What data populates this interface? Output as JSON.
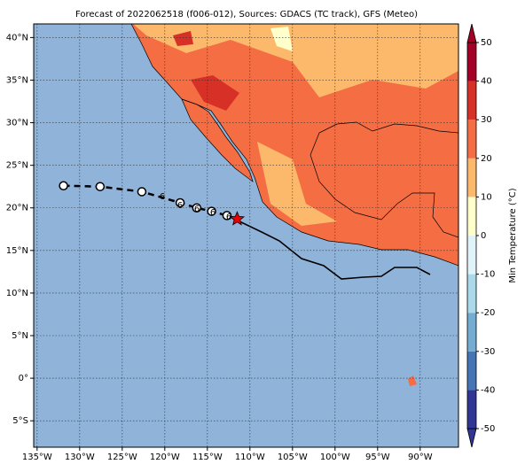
{
  "chart_data": {
    "type": "map",
    "title": "Forecast of 2022062518 (f006-012), Sources: GDACS (TC track), GFS (Meteo)",
    "xlim": [
      -135.4,
      -85.5
    ],
    "ylim": [
      -8.1,
      41.6
    ],
    "xticks": [
      {
        "value": -135,
        "label": "135°W"
      },
      {
        "value": -130,
        "label": "130°W"
      },
      {
        "value": -125,
        "label": "125°W"
      },
      {
        "value": -120,
        "label": "120°W"
      },
      {
        "value": -115,
        "label": "115°W"
      },
      {
        "value": -110,
        "label": "110°W"
      },
      {
        "value": -105,
        "label": "105°W"
      },
      {
        "value": -100,
        "label": "100°W"
      },
      {
        "value": -95,
        "label": "95°W"
      },
      {
        "value": -90,
        "label": "90°W"
      }
    ],
    "yticks": [
      {
        "value": -5,
        "label": "5°S"
      },
      {
        "value": 0,
        "label": "0°"
      },
      {
        "value": 5,
        "label": "5°N"
      },
      {
        "value": 10,
        "label": "10°N"
      },
      {
        "value": 15,
        "label": "15°N"
      },
      {
        "value": 20,
        "label": "20°N"
      },
      {
        "value": 25,
        "label": "25°N"
      },
      {
        "value": 30,
        "label": "30°N"
      },
      {
        "value": 35,
        "label": "35°N"
      },
      {
        "value": 40,
        "label": "40°N"
      }
    ],
    "grid": true,
    "track": {
      "lon": [
        -131.9,
        -127.6,
        -122.7,
        -118.2,
        -116.25,
        -114.5,
        -112.7
      ],
      "lat": [
        22.6,
        22.5,
        21.9,
        20.6,
        20.0,
        19.6,
        19.1
      ]
    },
    "current_position": {
      "lon": -111.5,
      "lat": 18.7
    },
    "colorbar": {
      "label": "Min Temperature (°C)",
      "lim": [
        -50,
        50
      ],
      "ticks": [
        -50,
        -40,
        -30,
        -20,
        -10,
        0,
        10,
        20,
        30,
        40,
        50
      ],
      "colors": [
        "#313695",
        "#4575b4",
        "#74add1",
        "#abd9e9",
        "#e0f3f8",
        "#ffffcc",
        "#fdb96b",
        "#f46d43",
        "#d73027",
        "#a50026"
      ]
    }
  }
}
